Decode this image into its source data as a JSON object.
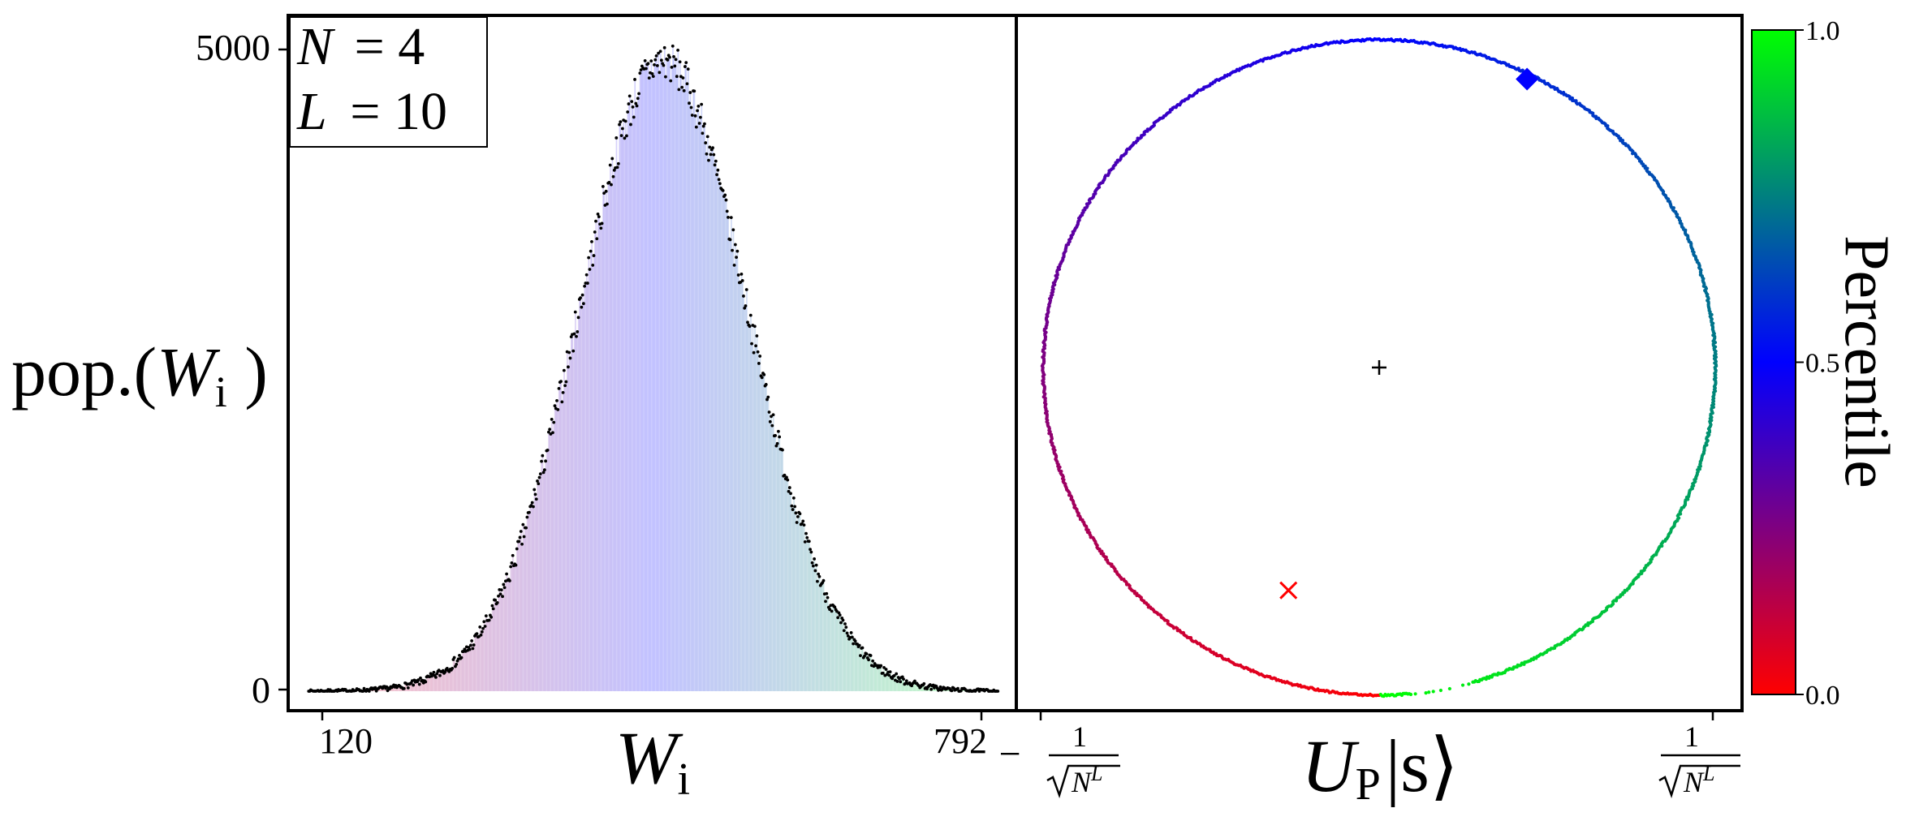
{
  "chart_data": [
    {
      "type": "scatter",
      "title": "",
      "inset_legend": {
        "line1": {
          "var": "N",
          "eq": "= 4"
        },
        "line2": {
          "var": "L",
          "eq": "= 10"
        }
      },
      "xlabel": {
        "var": "W",
        "sub": "i"
      },
      "ylabel": {
        "prefix": "pop.(",
        "var": "W",
        "sub": "i",
        "suffix": " )"
      },
      "xlim": [
        100,
        810
      ],
      "ylim": [
        -150,
        5200
      ],
      "x_ticks": [
        120,
        792
      ],
      "y_ticks": [
        0,
        5000
      ],
      "grid": false,
      "distribution": {
        "mean": 466,
        "sd": 82,
        "peak": 4850,
        "x_min": 120,
        "x_max": 792,
        "step": 1
      },
      "bar_colors": {
        "low": "#ff0000",
        "mid": "#0000ff",
        "high": "#00ff00",
        "opacity": 0.18
      },
      "point_color": "#000000"
    },
    {
      "type": "scatter",
      "title": "",
      "xlabel": {
        "var": "U",
        "sub": "P",
        "ket": "|s⟩"
      },
      "x_ticks": [
        {
          "value": -1,
          "sign": "−",
          "num": "1",
          "den_var": "N",
          "den_sup": "L"
        },
        {
          "value": 1,
          "sign": "",
          "num": "1",
          "den_var": "N",
          "den_sup": "L"
        }
      ],
      "xlim": [
        -1.04,
        1.04
      ],
      "ylim": [
        -1.04,
        1.04
      ],
      "grid": false,
      "ring": {
        "center": [
          0,
          0
        ],
        "radius": 1,
        "points": 1400,
        "color_by": "percentile"
      },
      "markers": [
        {
          "label": "center",
          "shape": "plus",
          "x": 0.0,
          "y": 0.0,
          "color": "#000000"
        },
        {
          "label": "diamond",
          "shape": "diamond",
          "x": 0.44,
          "y": 0.88,
          "color": "#0000ff"
        },
        {
          "label": "cross",
          "shape": "x",
          "x": -0.27,
          "y": -0.68,
          "color": "#ff0000"
        }
      ]
    },
    {
      "type": "colorbar",
      "label": "Percentile",
      "ticks": [
        "0.0",
        "0.5",
        "1.0"
      ],
      "tick_values": [
        0.0,
        0.5,
        1.0
      ],
      "stops": [
        "#ff0000",
        "#0000ff",
        "#00ff00"
      ],
      "range": [
        0,
        1
      ]
    }
  ]
}
